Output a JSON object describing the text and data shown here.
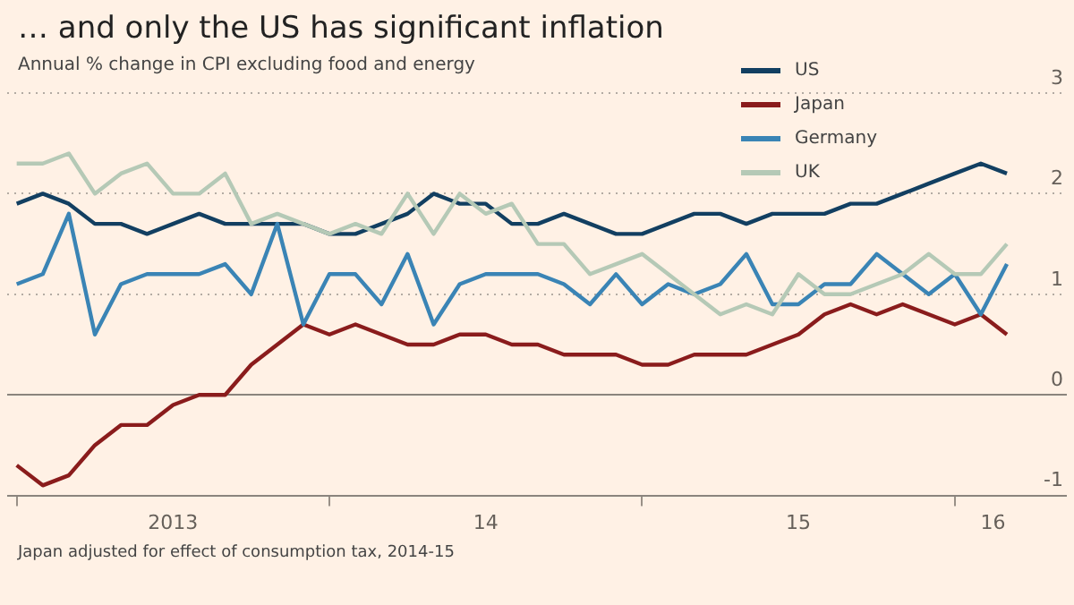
{
  "chart_data": {
    "type": "line",
    "title": "… and only the US has significant inflation",
    "subtitle": "Annual % change in CPI excluding food and energy",
    "annotations": [
      "Japan adjusted for effect of consumption tax, 2014-15"
    ],
    "x": [
      "2013-01",
      "2013-02",
      "2013-03",
      "2013-04",
      "2013-05",
      "2013-06",
      "2013-07",
      "2013-08",
      "2013-09",
      "2013-10",
      "2013-11",
      "2013-12",
      "2014-01",
      "2014-02",
      "2014-03",
      "2014-04",
      "2014-05",
      "2014-06",
      "2014-07",
      "2014-08",
      "2014-09",
      "2014-10",
      "2014-11",
      "2014-12",
      "2015-01",
      "2015-02",
      "2015-03",
      "2015-04",
      "2015-05",
      "2015-06",
      "2015-07",
      "2015-08",
      "2015-09",
      "2015-10",
      "2015-11",
      "2015-12",
      "2016-01",
      "2016-02",
      "2016-03"
    ],
    "series": [
      {
        "name": "US",
        "color": "#123f61",
        "values": [
          1.9,
          2.0,
          1.9,
          1.7,
          1.7,
          1.6,
          1.7,
          1.8,
          1.7,
          1.7,
          1.7,
          1.7,
          1.6,
          1.6,
          1.7,
          1.8,
          2.0,
          1.9,
          1.9,
          1.7,
          1.7,
          1.8,
          1.7,
          1.6,
          1.6,
          1.7,
          1.8,
          1.8,
          1.7,
          1.8,
          1.8,
          1.8,
          1.9,
          1.9,
          2.0,
          2.1,
          2.2,
          2.3,
          2.2
        ]
      },
      {
        "name": "Japan",
        "color": "#8a1c1c",
        "values": [
          -0.7,
          -0.9,
          -0.8,
          -0.5,
          -0.3,
          -0.3,
          -0.1,
          0,
          0,
          0.3,
          0.5,
          0.7,
          0.6,
          0.7,
          0.6,
          0.5,
          0.5,
          0.6,
          0.6,
          0.5,
          0.5,
          0.4,
          0.4,
          0.4,
          0.3,
          0.3,
          0.4,
          0.4,
          0.4,
          0.5,
          0.6,
          0.8,
          0.9,
          0.8,
          0.9,
          0.8,
          0.7,
          0.8,
          0.6
        ]
      },
      {
        "name": "Germany",
        "color": "#3a84b5",
        "values": [
          1.1,
          1.2,
          1.8,
          0.6,
          1.1,
          1.2,
          1.2,
          1.2,
          1.3,
          1.0,
          1.7,
          0.7,
          1.2,
          1.2,
          0.9,
          1.4,
          0.7,
          1.1,
          1.2,
          1.2,
          1.2,
          1.1,
          0.9,
          1.2,
          0.9,
          1.1,
          1.0,
          1.1,
          1.4,
          0.9,
          0.9,
          1.1,
          1.1,
          1.4,
          1.2,
          1.0,
          1.2,
          0.8,
          1.3
        ]
      },
      {
        "name": "UK",
        "color": "#b5c9b6",
        "values": [
          2.3,
          2.3,
          2.4,
          2.0,
          2.2,
          2.3,
          2.0,
          2.0,
          2.2,
          1.7,
          1.8,
          1.7,
          1.6,
          1.7,
          1.6,
          2.0,
          1.6,
          2.0,
          1.8,
          1.9,
          1.5,
          1.5,
          1.2,
          1.3,
          1.4,
          1.2,
          1.0,
          0.8,
          0.9,
          0.8,
          1.2,
          1.0,
          1.0,
          1.1,
          1.2,
          1.4,
          1.2,
          1.2,
          1.5
        ]
      }
    ],
    "xlim": [
      "2012-12-20",
      "2016-05-10"
    ],
    "xticks": [
      {
        "value": "2013-01",
        "label": null
      },
      {
        "value": "2013-07",
        "label": "2013"
      },
      {
        "value": "2014-01",
        "label": null
      },
      {
        "value": "2014-07",
        "label": "14"
      },
      {
        "value": "2015-01",
        "label": null
      },
      {
        "value": "2015-07",
        "label": "15"
      },
      {
        "value": "2016-01",
        "label": null
      },
      {
        "value": "2016-02-15",
        "label": "16"
      }
    ],
    "ylim": [
      -1,
      3
    ],
    "yticks": [
      -1,
      0,
      1,
      2,
      3
    ],
    "grid": "y",
    "legend": "top right",
    "marker": "none",
    "line_style": "solid"
  }
}
